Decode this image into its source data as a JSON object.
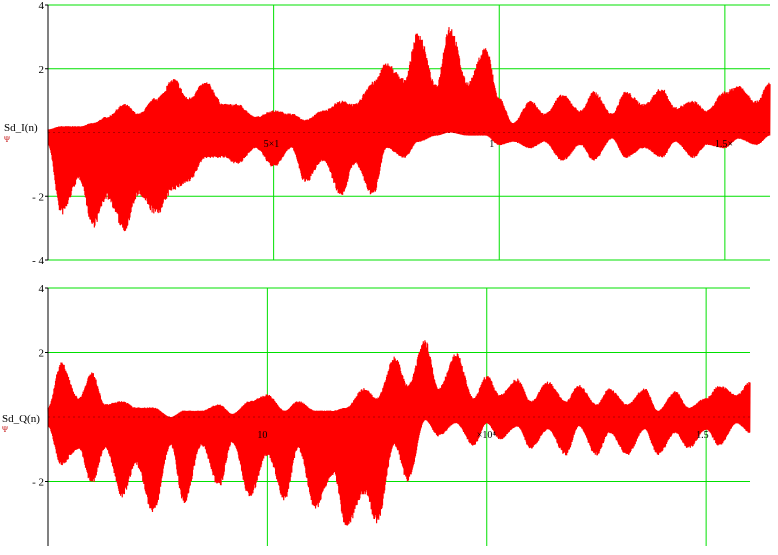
{
  "chart_data": [
    {
      "type": "line",
      "ylabel": "Sd_I(n)",
      "ylabel_marker": "Ψ",
      "ylim": [
        -4,
        4
      ],
      "xlim": [
        0,
        16000
      ],
      "y_ticks": [
        4,
        2,
        -2,
        -4
      ],
      "y_tick_labels": [
        "4",
        "2",
        "- 2",
        "- 4"
      ],
      "x_ticks": [
        5000,
        10000,
        15000
      ],
      "x_tick_labels": [
        "5×1",
        "1",
        "1.5×"
      ],
      "x_gridlines": [
        5000,
        10000,
        15000
      ],
      "y_gridlines": [
        4,
        2,
        -2,
        -4
      ],
      "grid": true,
      "line_color": "#ff0000",
      "grid_color": "#00e000",
      "series": [
        {
          "envelope": {
            "x": [
              0,
              300,
              700,
              1000,
              1300,
              1700,
              2000,
              2400,
              2800,
              3100,
              3500,
              3900,
              4200,
              4600,
              5000,
              5400,
              5700,
              6100,
              6500,
              6800,
              7200,
              7500,
              7900,
              8200,
              8600,
              8900,
              9300,
              9700,
              10000,
              10300,
              10700,
              11000,
              11400,
              11800,
              12100,
              12500,
              12800,
              13200,
              13600,
              13900,
              14300,
              14600,
              15000,
              15300,
              15700,
              16000
            ],
            "upper": [
              0.1,
              0.2,
              0.2,
              0.3,
              0.5,
              0.9,
              0.6,
              1.1,
              1.7,
              1.1,
              1.6,
              0.9,
              0.9,
              0.5,
              0.7,
              0.6,
              0.4,
              0.7,
              1.0,
              0.9,
              1.6,
              2.2,
              1.7,
              3.2,
              1.5,
              3.4,
              1.6,
              2.7,
              1.1,
              0.3,
              1.0,
              0.6,
              1.2,
              0.7,
              1.3,
              0.6,
              1.3,
              0.9,
              1.4,
              0.8,
              1.0,
              0.7,
              1.3,
              1.5,
              1.0,
              1.6
            ],
            "lower": [
              -0.4,
              -2.6,
              -1.5,
              -3.0,
              -2.1,
              -3.1,
              -2.0,
              -2.6,
              -1.8,
              -1.6,
              -0.8,
              -0.8,
              -1.0,
              -0.5,
              -1.1,
              -0.5,
              -1.6,
              -0.9,
              -2.0,
              -1.0,
              -2.0,
              -0.5,
              -0.8,
              -0.3,
              -0.1,
              0.0,
              -0.1,
              -0.1,
              -0.4,
              -0.3,
              -0.5,
              -0.3,
              -0.9,
              -0.4,
              -0.9,
              -0.2,
              -0.8,
              -0.5,
              -0.8,
              -0.3,
              -0.8,
              -0.4,
              -0.5,
              -0.2,
              -0.4,
              -0.1
            ]
          }
        }
      ]
    },
    {
      "type": "line",
      "ylabel": "Sd_Q(n)",
      "ylabel_marker": "Ψ",
      "ylim": [
        -4,
        4
      ],
      "xlim": [
        0,
        16000
      ],
      "y_ticks": [
        4,
        2,
        -2
      ],
      "y_tick_labels": [
        "4",
        "2",
        "- 2"
      ],
      "x_ticks": [
        5000,
        10000,
        15000
      ],
      "x_tick_labels": [
        "10",
        "×10⁴",
        "1.5"
      ],
      "x_gridlines": [
        5000,
        10000,
        15000
      ],
      "y_gridlines": [
        4,
        2,
        -2
      ],
      "grid": true,
      "line_color": "#ff0000",
      "grid_color": "#00e000",
      "series": [
        {
          "envelope": {
            "x": [
              0,
              300,
              700,
              1000,
              1300,
              1700,
              2000,
              2400,
              2800,
              3100,
              3500,
              3900,
              4200,
              4600,
              5000,
              5400,
              5700,
              6100,
              6500,
              6800,
              7200,
              7500,
              7900,
              8200,
              8600,
              8900,
              9300,
              9700,
              10000,
              10300,
              10700,
              11000,
              11400,
              11800,
              12100,
              12500,
              12800,
              13200,
              13600,
              13900,
              14300,
              14600,
              15000,
              15300,
              15700,
              16000
            ],
            "upper": [
              0.3,
              1.7,
              0.6,
              1.4,
              0.4,
              0.5,
              0.3,
              0.3,
              0.0,
              0.2,
              0.2,
              0.4,
              0.1,
              0.5,
              0.7,
              0.2,
              0.5,
              0.2,
              0.2,
              0.3,
              0.9,
              0.6,
              1.9,
              1.0,
              2.4,
              0.9,
              2.0,
              0.6,
              1.3,
              0.7,
              1.2,
              0.5,
              1.1,
              0.5,
              1.0,
              0.4,
              0.9,
              0.4,
              0.9,
              0.2,
              0.8,
              0.3,
              0.6,
              1.0,
              0.7,
              1.1
            ],
            "lower": [
              -0.3,
              -1.5,
              -1.0,
              -2.1,
              -1.0,
              -2.5,
              -1.5,
              -3.0,
              -0.9,
              -2.7,
              -0.9,
              -2.2,
              -0.8,
              -2.5,
              -1.2,
              -2.6,
              -1.0,
              -2.9,
              -1.8,
              -3.5,
              -2.4,
              -3.3,
              -0.9,
              -2.0,
              -0.1,
              -0.6,
              -0.2,
              -0.9,
              -0.2,
              -0.7,
              -0.3,
              -1.0,
              -0.4,
              -1.2,
              -0.3,
              -1.2,
              -0.5,
              -1.2,
              -0.4,
              -1.2,
              -0.5,
              -1.0,
              -0.4,
              -0.9,
              -0.2,
              -0.5
            ]
          }
        }
      ]
    }
  ]
}
